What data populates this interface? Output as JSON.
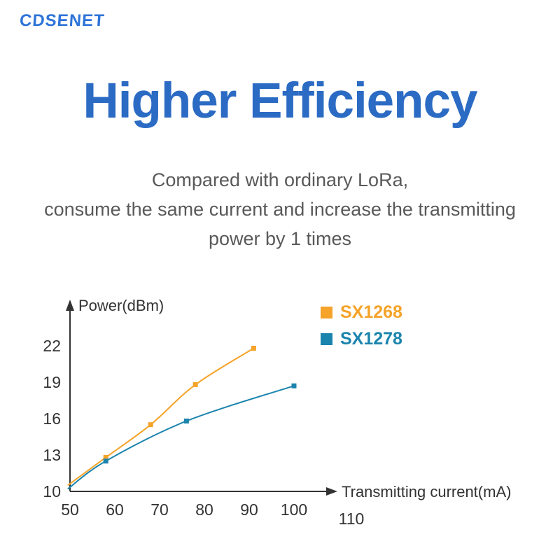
{
  "brand": "CDSENET",
  "title": "Higher Efficiency",
  "subtitle_lines": [
    "Compared with ordinary LoRa,",
    "consume the same current and increase the transmitting",
    "power by 1 times"
  ],
  "chart_data": {
    "type": "line",
    "title": "Higher Efficiency",
    "xlabel": "Transmitting current(mA)",
    "ylabel": "Power(dBm)",
    "xticks": [
      50,
      60,
      70,
      80,
      90,
      100,
      110
    ],
    "yticks": [
      22,
      19,
      16,
      13,
      10
    ],
    "xlim": [
      50,
      110
    ],
    "ylim": [
      10,
      23
    ],
    "grid": false,
    "axis_color": "#333333",
    "legend_position": "top-right",
    "marker": "square",
    "series": [
      {
        "name": "SX1268",
        "color": "#f5a329",
        "line_start": [
          49.5,
          10.5
        ],
        "points": [
          [
            58,
            12.8
          ],
          [
            68,
            15.5
          ],
          [
            78,
            18.8
          ],
          [
            91,
            21.8
          ]
        ]
      },
      {
        "name": "SX1278",
        "color": "#1b84ad",
        "line_start": [
          49.5,
          10.2
        ],
        "points": [
          [
            58,
            12.5
          ],
          [
            76,
            15.8
          ],
          [
            100,
            18.7
          ]
        ]
      }
    ]
  }
}
